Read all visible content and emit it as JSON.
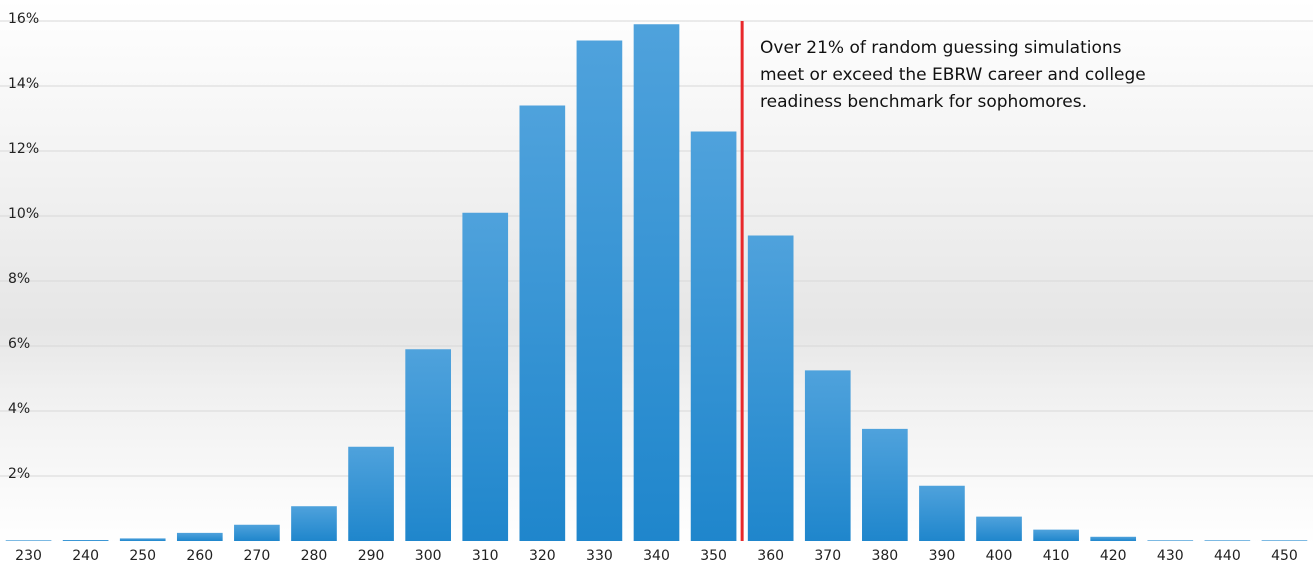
{
  "chart_data": {
    "type": "bar",
    "categories": [
      230,
      240,
      250,
      260,
      270,
      280,
      290,
      300,
      310,
      320,
      330,
      340,
      350,
      360,
      370,
      380,
      390,
      400,
      410,
      420,
      430,
      440,
      450
    ],
    "values": [
      0.02,
      0.03,
      0.08,
      0.25,
      0.5,
      1.07,
      2.9,
      5.9,
      10.1,
      13.4,
      15.4,
      15.9,
      12.6,
      9.4,
      5.25,
      3.45,
      1.7,
      0.75,
      0.35,
      0.13,
      0.02,
      0.02,
      0.02
    ],
    "color": "#3a95d6",
    "ylim": [
      0,
      16
    ],
    "yticks": [
      {
        "value": 2,
        "label": "2%"
      },
      {
        "value": 4,
        "label": "4%"
      },
      {
        "value": 6,
        "label": "6%"
      },
      {
        "value": 8,
        "label": "8%"
      },
      {
        "value": 10,
        "label": "10%"
      },
      {
        "value": 12,
        "label": "12%"
      },
      {
        "value": 14,
        "label": "14%"
      },
      {
        "value": 16,
        "label": "16%"
      }
    ],
    "grid": true,
    "benchmark": {
      "x": 355,
      "color": "#e8282b"
    },
    "annotation": [
      "Over 21% of random guessing simulations",
      "meet or exceed the EBRW career and college",
      "readiness benchmark for sophomores."
    ]
  }
}
